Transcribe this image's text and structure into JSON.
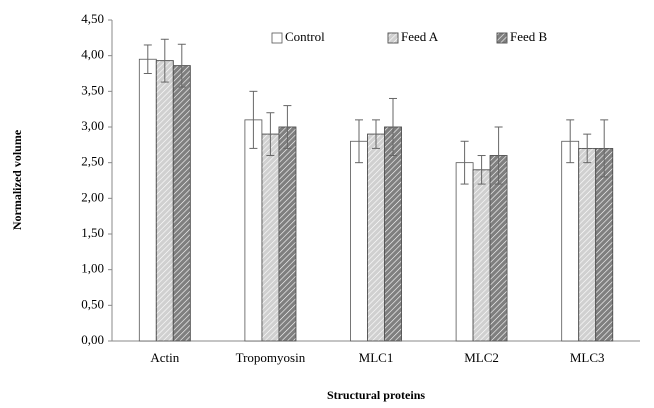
{
  "chart_data": {
    "type": "bar",
    "x_label": "Structural proteins",
    "y_label": "Normalized volume",
    "categories": [
      "Actin",
      "Tropomyosin",
      "MLC1",
      "MLC2",
      "MLC3"
    ],
    "series": [
      {
        "name": "Control",
        "color": "#ffffff",
        "hatch": false,
        "values": [
          3.95,
          3.1,
          2.8,
          2.5,
          2.8
        ],
        "errors": [
          0.2,
          0.4,
          0.3,
          0.3,
          0.3
        ]
      },
      {
        "name": "Feed A",
        "color": "#d0d0d0",
        "hatch": true,
        "values": [
          3.93,
          2.9,
          2.9,
          2.4,
          2.7
        ],
        "errors": [
          0.3,
          0.3,
          0.2,
          0.2,
          0.2
        ]
      },
      {
        "name": "Feed B",
        "color": "#7f7f7f",
        "hatch": true,
        "values": [
          3.86,
          3.0,
          3.0,
          2.6,
          2.7
        ],
        "errors": [
          0.3,
          0.3,
          0.4,
          0.4,
          0.4
        ]
      }
    ],
    "ylim": [
      0,
      4.5
    ],
    "yticks": [
      {
        "value": 0,
        "label": "0,00"
      },
      {
        "value": 0.5,
        "label": "0,50"
      },
      {
        "value": 1,
        "label": "1,00"
      },
      {
        "value": 1.5,
        "label": "1,50"
      },
      {
        "value": 2,
        "label": "2,00"
      },
      {
        "value": 2.5,
        "label": "2,50"
      },
      {
        "value": 3,
        "label": "3,00"
      },
      {
        "value": 3.5,
        "label": "3,50"
      },
      {
        "value": 4,
        "label": "4,00"
      },
      {
        "value": 4.5,
        "label": "4,50"
      }
    ],
    "grid": false,
    "legend": "top"
  }
}
